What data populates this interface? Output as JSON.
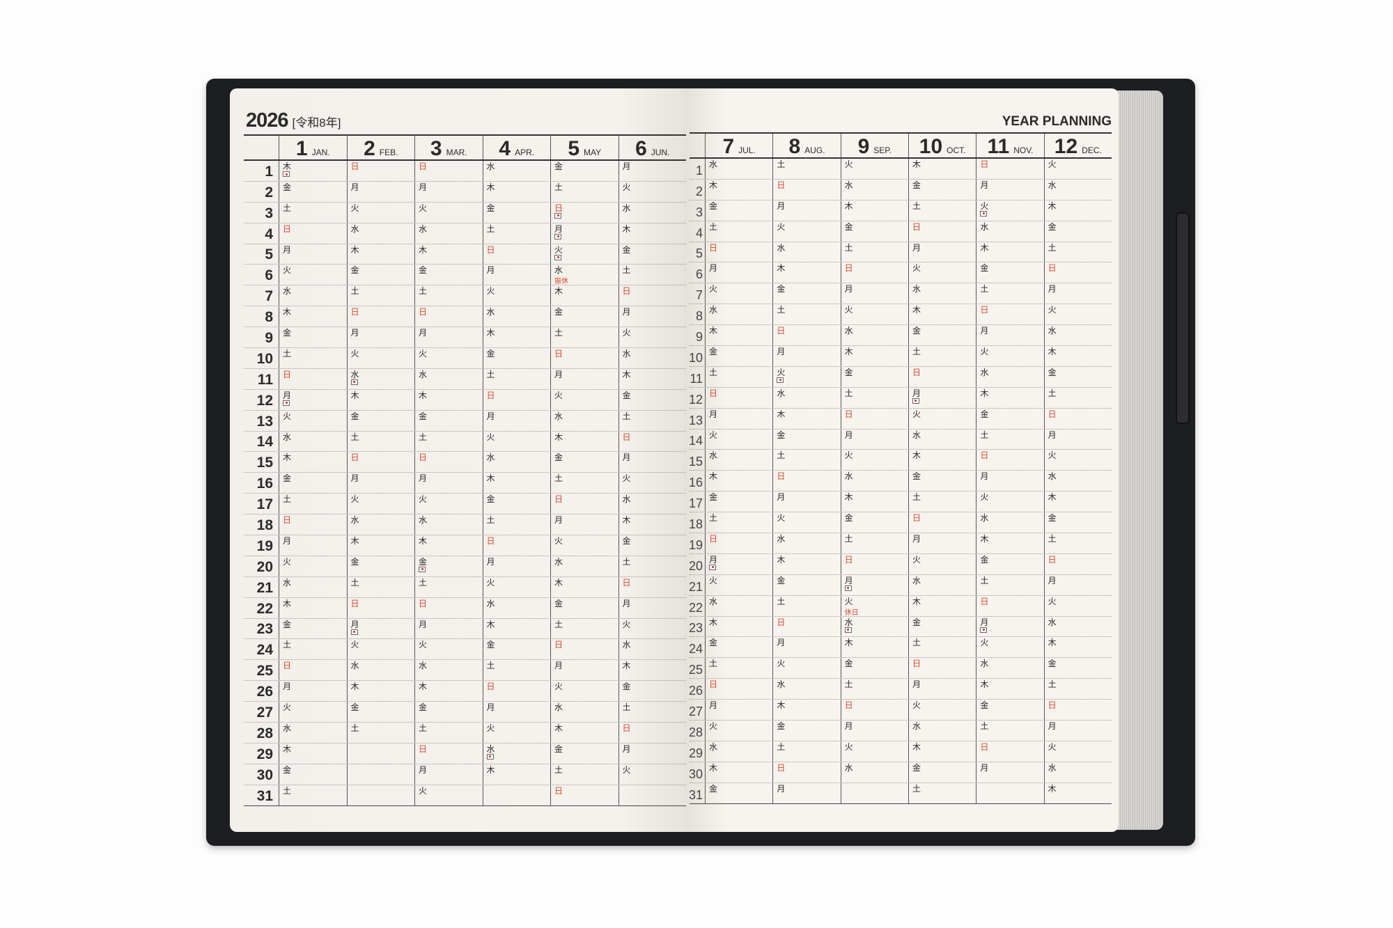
{
  "header": {
    "year": "2026",
    "era": "[令和8年]",
    "title": "YEAR PLANNING"
  },
  "colors": {
    "sunday": "#d8472b",
    "cover": "#1d1e21",
    "paper": "#f5f2ed"
  },
  "months": [
    {
      "num": "1",
      "abbr": "JAN.",
      "weekdays": "木金土日月火水木金土日月火水木金土日月火水木金土日月火水木金土"
    },
    {
      "num": "2",
      "abbr": "FEB.",
      "weekdays": "日月火水木金土日月火水木金土日月火水木金土日月火水木金土"
    },
    {
      "num": "3",
      "abbr": "MAR.",
      "weekdays": "日月火水木金土日月火水木金土日月火水木金土日月火水木金土日月火"
    },
    {
      "num": "4",
      "abbr": "APR.",
      "weekdays": "水木金土日月火水木金土日月火水木金土日月火水木金土日月火水木"
    },
    {
      "num": "5",
      "abbr": "MAY",
      "weekdays": "金土日月火水木金土日月火水木金土日月火水木金土日月火水木金土日"
    },
    {
      "num": "6",
      "abbr": "JUN.",
      "weekdays": "月火水木金土日月火水木金土日月火水木金土日月火水木金土日月火"
    },
    {
      "num": "7",
      "abbr": "JUL.",
      "weekdays": "水木金土日月火水木金土日月火水木金土日月火水木金土日月火水木金"
    },
    {
      "num": "8",
      "abbr": "AUG.",
      "weekdays": "土日月火水木金土日月火水木金土日月火水木金土日月火水木金土日月"
    },
    {
      "num": "9",
      "abbr": "SEP.",
      "weekdays": "火水木金土日月火水木金土日月火水木金土日月火水木金土日月火水"
    },
    {
      "num": "10",
      "abbr": "OCT.",
      "weekdays": "木金土日月火水木金土日月火水木金土日月火水木金土日月火水木金土"
    },
    {
      "num": "11",
      "abbr": "NOV.",
      "weekdays": "日月火水木金土日月火水木金土日月火水木金土日月火水木金土日月"
    },
    {
      "num": "12",
      "abbr": "DEC.",
      "weekdays": "火水木金土日月火水木金土日月火水木金土日月火水木金土日月火水木"
    }
  ],
  "holidays": [
    {
      "month": 1,
      "day": 1,
      "icon": "flag-icon"
    },
    {
      "month": 1,
      "day": 12,
      "icon": "flag-icon"
    },
    {
      "month": 2,
      "day": 11,
      "icon": "flag-icon"
    },
    {
      "month": 2,
      "day": 23,
      "icon": "flag-icon"
    },
    {
      "month": 3,
      "day": 20,
      "icon": "flag-icon"
    },
    {
      "month": 4,
      "day": 29,
      "icon": "flag-icon"
    },
    {
      "month": 5,
      "day": 3,
      "icon": "flag-icon"
    },
    {
      "month": 5,
      "day": 4,
      "icon": "flag-icon"
    },
    {
      "month": 5,
      "day": 5,
      "icon": "flag-icon"
    },
    {
      "month": 5,
      "day": 6,
      "note": "振休"
    },
    {
      "month": 7,
      "day": 20,
      "icon": "flag-icon"
    },
    {
      "month": 8,
      "day": 11,
      "icon": "flag-icon"
    },
    {
      "month": 9,
      "day": 21,
      "icon": "flag-icon"
    },
    {
      "month": 9,
      "day": 22,
      "note": "休日"
    },
    {
      "month": 9,
      "day": 23,
      "icon": "flag-icon"
    },
    {
      "month": 10,
      "day": 12,
      "icon": "flag-icon"
    },
    {
      "month": 11,
      "day": 3,
      "icon": "flag-icon"
    },
    {
      "month": 11,
      "day": 23,
      "icon": "flag-icon"
    }
  ],
  "days": [
    "1",
    "2",
    "3",
    "4",
    "5",
    "6",
    "7",
    "8",
    "9",
    "10",
    "11",
    "12",
    "13",
    "14",
    "15",
    "16",
    "17",
    "18",
    "19",
    "20",
    "21",
    "22",
    "23",
    "24",
    "25",
    "26",
    "27",
    "28",
    "29",
    "30",
    "31"
  ]
}
